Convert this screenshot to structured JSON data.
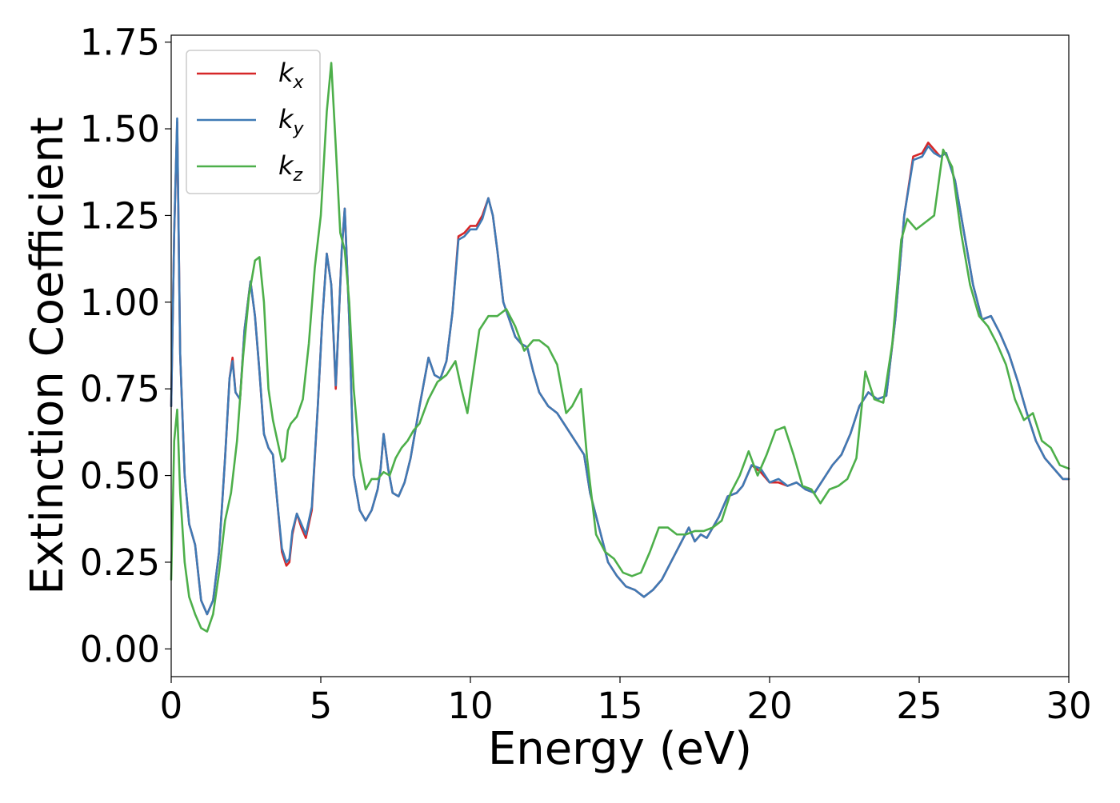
{
  "chart_data": {
    "type": "line",
    "title": "",
    "xlabel": "Energy (eV)",
    "ylabel": "Extinction Coefficient",
    "xlim": [
      0,
      30
    ],
    "ylim": [
      -0.08,
      1.77
    ],
    "xticks": [
      0,
      5,
      10,
      15,
      20,
      25,
      30
    ],
    "xtick_labels": [
      "0",
      "5",
      "10",
      "15",
      "20",
      "25",
      "30"
    ],
    "yticks": [
      0,
      0.25,
      0.5,
      0.75,
      1.0,
      1.25,
      1.5,
      1.75
    ],
    "ytick_labels": [
      "0.00",
      "0.25",
      "0.50",
      "0.75",
      "1.00",
      "1.25",
      "1.50",
      "1.75"
    ],
    "grid": false,
    "legend_position": "top-left",
    "series": [
      {
        "name": "k_x",
        "label_base": "k",
        "label_sub": "x",
        "color": "#d62728",
        "x": [
          0,
          0.1,
          0.2,
          0.3,
          0.45,
          0.6,
          0.8,
          1.0,
          1.2,
          1.4,
          1.6,
          1.8,
          1.95,
          2.05,
          2.15,
          2.3,
          2.45,
          2.65,
          2.8,
          2.95,
          3.1,
          3.25,
          3.4,
          3.55,
          3.7,
          3.85,
          3.95,
          4.05,
          4.2,
          4.35,
          4.5,
          4.7,
          4.9,
          5.05,
          5.2,
          5.35,
          5.5,
          5.6,
          5.7,
          5.8,
          5.95,
          6.1,
          6.3,
          6.5,
          6.7,
          6.9,
          7.0,
          7.1,
          7.25,
          7.4,
          7.6,
          7.8,
          8.0,
          8.3,
          8.6,
          8.8,
          9.0,
          9.2,
          9.4,
          9.6,
          9.8,
          10.0,
          10.2,
          10.4,
          10.6,
          10.75,
          10.9,
          11.1,
          11.3,
          11.5,
          11.7,
          11.9,
          12.1,
          12.3,
          12.6,
          12.9,
          13.2,
          13.5,
          13.8,
          14.0,
          14.3,
          14.6,
          14.9,
          15.2,
          15.5,
          15.8,
          16.1,
          16.4,
          16.7,
          17.0,
          17.3,
          17.5,
          17.7,
          17.9,
          18.1,
          18.3,
          18.6,
          18.9,
          19.1,
          19.4,
          19.7,
          20.0,
          20.3,
          20.6,
          20.9,
          21.2,
          21.5,
          21.8,
          22.1,
          22.4,
          22.7,
          23.0,
          23.3,
          23.6,
          23.9,
          24.2,
          24.5,
          24.8,
          25.1,
          25.3,
          25.5,
          25.7,
          25.9,
          26.2,
          26.5,
          26.8,
          27.1,
          27.4,
          27.7,
          28.0,
          28.3,
          28.6,
          28.9,
          29.2,
          29.5,
          29.8,
          30.0
        ],
        "y": [
          0.7,
          1.2,
          1.52,
          0.85,
          0.5,
          0.36,
          0.3,
          0.14,
          0.1,
          0.14,
          0.28,
          0.55,
          0.78,
          0.84,
          0.74,
          0.72,
          0.92,
          1.06,
          0.96,
          0.8,
          0.62,
          0.58,
          0.56,
          0.42,
          0.28,
          0.24,
          0.25,
          0.33,
          0.39,
          0.35,
          0.32,
          0.4,
          0.7,
          0.95,
          1.14,
          1.05,
          0.75,
          0.95,
          1.15,
          1.27,
          0.95,
          0.5,
          0.4,
          0.37,
          0.4,
          0.46,
          0.52,
          0.62,
          0.52,
          0.45,
          0.44,
          0.48,
          0.55,
          0.7,
          0.84,
          0.79,
          0.78,
          0.83,
          0.97,
          1.19,
          1.2,
          1.22,
          1.22,
          1.25,
          1.3,
          1.25,
          1.15,
          1.0,
          0.95,
          0.9,
          0.88,
          0.87,
          0.8,
          0.74,
          0.7,
          0.68,
          0.64,
          0.6,
          0.56,
          0.45,
          0.35,
          0.25,
          0.21,
          0.18,
          0.17,
          0.15,
          0.17,
          0.2,
          0.25,
          0.3,
          0.35,
          0.31,
          0.33,
          0.32,
          0.35,
          0.38,
          0.44,
          0.45,
          0.47,
          0.53,
          0.51,
          0.48,
          0.48,
          0.47,
          0.48,
          0.46,
          0.45,
          0.49,
          0.53,
          0.56,
          0.62,
          0.7,
          0.74,
          0.72,
          0.73,
          0.95,
          1.25,
          1.42,
          1.43,
          1.46,
          1.44,
          1.42,
          1.43,
          1.35,
          1.2,
          1.05,
          0.95,
          0.96,
          0.91,
          0.85,
          0.77,
          0.68,
          0.6,
          0.55,
          0.52,
          0.49,
          0.49
        ]
      },
      {
        "name": "k_y",
        "label_base": "k",
        "label_sub": "y",
        "color": "#3f7ab5",
        "x": [
          0,
          0.1,
          0.2,
          0.3,
          0.45,
          0.6,
          0.8,
          1.0,
          1.2,
          1.4,
          1.6,
          1.8,
          1.95,
          2.05,
          2.15,
          2.3,
          2.45,
          2.65,
          2.8,
          2.95,
          3.1,
          3.25,
          3.4,
          3.55,
          3.7,
          3.85,
          3.95,
          4.05,
          4.2,
          4.35,
          4.5,
          4.7,
          4.9,
          5.05,
          5.2,
          5.35,
          5.5,
          5.6,
          5.7,
          5.8,
          5.95,
          6.1,
          6.3,
          6.5,
          6.7,
          6.9,
          7.0,
          7.1,
          7.25,
          7.4,
          7.6,
          7.8,
          8.0,
          8.3,
          8.6,
          8.8,
          9.0,
          9.2,
          9.4,
          9.6,
          9.8,
          10.0,
          10.2,
          10.4,
          10.6,
          10.75,
          10.9,
          11.1,
          11.3,
          11.5,
          11.7,
          11.9,
          12.1,
          12.3,
          12.6,
          12.9,
          13.2,
          13.5,
          13.8,
          14.0,
          14.3,
          14.6,
          14.9,
          15.2,
          15.5,
          15.8,
          16.1,
          16.4,
          16.7,
          17.0,
          17.3,
          17.5,
          17.7,
          17.9,
          18.1,
          18.3,
          18.6,
          18.9,
          19.1,
          19.4,
          19.7,
          20.0,
          20.3,
          20.6,
          20.9,
          21.2,
          21.5,
          21.8,
          22.1,
          22.4,
          22.7,
          23.0,
          23.3,
          23.6,
          23.9,
          24.2,
          24.5,
          24.8,
          25.1,
          25.3,
          25.5,
          25.7,
          25.9,
          26.2,
          26.5,
          26.8,
          27.1,
          27.4,
          27.7,
          28.0,
          28.3,
          28.6,
          28.9,
          29.2,
          29.5,
          29.8,
          30.0
        ],
        "y": [
          0.7,
          1.2,
          1.53,
          0.85,
          0.5,
          0.36,
          0.3,
          0.14,
          0.1,
          0.14,
          0.28,
          0.55,
          0.78,
          0.83,
          0.74,
          0.72,
          0.92,
          1.06,
          0.96,
          0.8,
          0.62,
          0.58,
          0.56,
          0.42,
          0.29,
          0.25,
          0.26,
          0.34,
          0.39,
          0.36,
          0.33,
          0.41,
          0.7,
          0.95,
          1.14,
          1.05,
          0.76,
          0.95,
          1.15,
          1.27,
          0.95,
          0.5,
          0.4,
          0.37,
          0.4,
          0.46,
          0.52,
          0.62,
          0.52,
          0.45,
          0.44,
          0.48,
          0.55,
          0.7,
          0.84,
          0.79,
          0.78,
          0.83,
          0.97,
          1.18,
          1.19,
          1.21,
          1.21,
          1.24,
          1.3,
          1.25,
          1.15,
          1.0,
          0.95,
          0.9,
          0.88,
          0.87,
          0.8,
          0.74,
          0.7,
          0.68,
          0.64,
          0.6,
          0.56,
          0.45,
          0.35,
          0.25,
          0.21,
          0.18,
          0.17,
          0.15,
          0.17,
          0.2,
          0.25,
          0.3,
          0.35,
          0.31,
          0.33,
          0.32,
          0.35,
          0.38,
          0.44,
          0.45,
          0.47,
          0.53,
          0.52,
          0.48,
          0.49,
          0.47,
          0.48,
          0.46,
          0.45,
          0.49,
          0.53,
          0.56,
          0.62,
          0.7,
          0.74,
          0.72,
          0.73,
          0.95,
          1.25,
          1.41,
          1.42,
          1.45,
          1.43,
          1.42,
          1.43,
          1.35,
          1.2,
          1.05,
          0.95,
          0.96,
          0.91,
          0.85,
          0.77,
          0.68,
          0.6,
          0.55,
          0.52,
          0.49,
          0.49
        ]
      },
      {
        "name": "k_z",
        "label_base": "k",
        "label_sub": "z",
        "color": "#4daf4a",
        "x": [
          0,
          0.1,
          0.2,
          0.3,
          0.45,
          0.6,
          0.8,
          1.0,
          1.2,
          1.4,
          1.6,
          1.8,
          2.0,
          2.2,
          2.4,
          2.6,
          2.8,
          2.95,
          3.1,
          3.25,
          3.4,
          3.55,
          3.7,
          3.8,
          3.9,
          4.0,
          4.2,
          4.4,
          4.6,
          4.8,
          5.0,
          5.2,
          5.35,
          5.5,
          5.65,
          5.8,
          5.95,
          6.1,
          6.3,
          6.5,
          6.7,
          6.9,
          7.1,
          7.3,
          7.5,
          7.7,
          7.9,
          8.1,
          8.3,
          8.6,
          8.9,
          9.2,
          9.5,
          9.7,
          9.9,
          10.1,
          10.3,
          10.6,
          10.9,
          11.2,
          11.5,
          11.8,
          12.1,
          12.3,
          12.6,
          12.9,
          13.2,
          13.4,
          13.7,
          13.9,
          14.2,
          14.5,
          14.8,
          15.1,
          15.4,
          15.7,
          16.0,
          16.3,
          16.6,
          16.9,
          17.2,
          17.5,
          17.8,
          18.1,
          18.4,
          18.7,
          19.0,
          19.3,
          19.6,
          19.9,
          20.2,
          20.5,
          20.8,
          21.1,
          21.4,
          21.7,
          22.0,
          22.3,
          22.6,
          22.9,
          23.2,
          23.5,
          23.8,
          24.1,
          24.4,
          24.6,
          24.9,
          25.2,
          25.5,
          25.8,
          26.1,
          26.4,
          26.7,
          27.0,
          27.3,
          27.6,
          27.9,
          28.2,
          28.5,
          28.8,
          29.1,
          29.4,
          29.7,
          30.0
        ],
        "y": [
          0.2,
          0.6,
          0.69,
          0.45,
          0.25,
          0.15,
          0.1,
          0.06,
          0.05,
          0.1,
          0.22,
          0.37,
          0.45,
          0.6,
          0.84,
          1.02,
          1.12,
          1.13,
          1.0,
          0.75,
          0.66,
          0.6,
          0.54,
          0.55,
          0.63,
          0.65,
          0.67,
          0.72,
          0.88,
          1.1,
          1.25,
          1.55,
          1.69,
          1.45,
          1.2,
          1.15,
          1.0,
          0.75,
          0.55,
          0.46,
          0.49,
          0.49,
          0.51,
          0.5,
          0.55,
          0.58,
          0.6,
          0.63,
          0.65,
          0.72,
          0.77,
          0.79,
          0.83,
          0.75,
          0.68,
          0.8,
          0.92,
          0.96,
          0.96,
          0.98,
          0.93,
          0.86,
          0.89,
          0.89,
          0.87,
          0.82,
          0.68,
          0.7,
          0.75,
          0.55,
          0.33,
          0.28,
          0.26,
          0.22,
          0.21,
          0.22,
          0.28,
          0.35,
          0.35,
          0.33,
          0.33,
          0.34,
          0.34,
          0.35,
          0.37,
          0.45,
          0.5,
          0.57,
          0.5,
          0.56,
          0.63,
          0.64,
          0.56,
          0.47,
          0.46,
          0.42,
          0.46,
          0.47,
          0.49,
          0.55,
          0.8,
          0.72,
          0.71,
          0.88,
          1.18,
          1.24,
          1.21,
          1.23,
          1.25,
          1.44,
          1.39,
          1.2,
          1.05,
          0.96,
          0.93,
          0.88,
          0.82,
          0.72,
          0.66,
          0.68,
          0.6,
          0.58,
          0.53,
          0.52
        ]
      }
    ]
  }
}
